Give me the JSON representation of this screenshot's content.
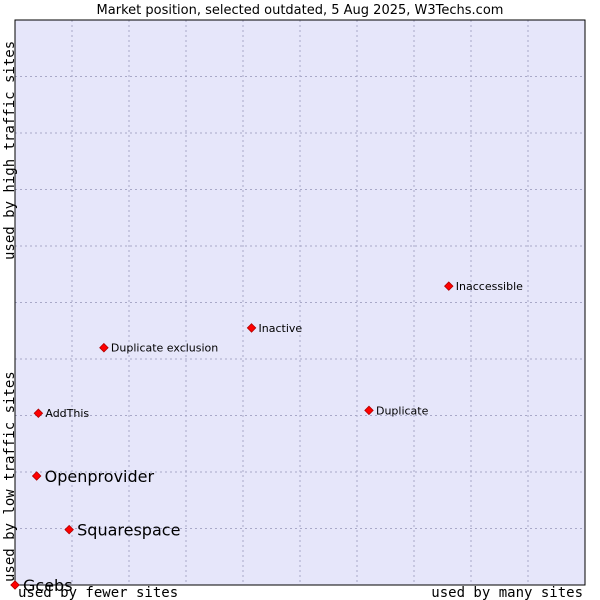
{
  "chart_data": {
    "type": "scatter",
    "title": "Market position, selected outdated, 5 Aug 2025, W3Techs.com",
    "xlabel_low": "used by fewer sites",
    "xlabel_high": "used by many sites",
    "ylabel_low": "used by low traffic sites",
    "ylabel_high": "used by high traffic sites",
    "xlim": [
      0,
      100
    ],
    "ylim": [
      0,
      100
    ],
    "grid": true,
    "colors": {
      "plot_bg": "#e6e6fa",
      "grid": "#a8a8c8",
      "point": "#ff0000",
      "point_edge": "#b00000",
      "frame": "#000000"
    },
    "points": [
      {
        "name": "Gcebs",
        "x": 0.0,
        "y": 0.0,
        "size": "large"
      },
      {
        "name": "Squarespace",
        "x": 9.5,
        "y": 9.8,
        "size": "large"
      },
      {
        "name": "Openprovider",
        "x": 3.8,
        "y": 19.3,
        "size": "large"
      },
      {
        "name": "AddThis",
        "x": 4.1,
        "y": 30.4,
        "size": "small"
      },
      {
        "name": "Duplicate exclusion",
        "x": 15.6,
        "y": 42.0,
        "size": "small"
      },
      {
        "name": "Inactive",
        "x": 41.5,
        "y": 45.5,
        "size": "small"
      },
      {
        "name": "Duplicate",
        "x": 62.1,
        "y": 30.9,
        "size": "small"
      },
      {
        "name": "Inaccessible",
        "x": 76.1,
        "y": 52.9,
        "size": "small"
      }
    ]
  }
}
